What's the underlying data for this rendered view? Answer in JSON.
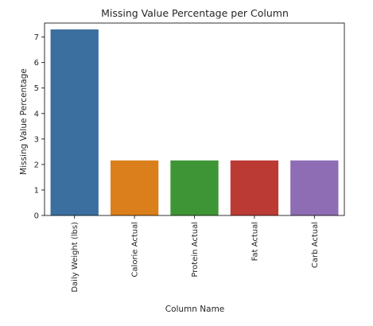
{
  "chart_data": {
    "type": "bar",
    "title": "Missing Value Percentage per Column",
    "xlabel": "Column Name",
    "ylabel": "Missing Value Percentage",
    "categories": [
      "Daily Weight (lbs)",
      "Calorie Actual",
      "Protein Actual",
      "Fat Actual",
      "Carb Actual"
    ],
    "values": [
      7.3,
      2.16,
      2.16,
      2.16,
      2.16
    ],
    "colors": [
      "#3a6fa0",
      "#da7f1b",
      "#3e9535",
      "#bc3a34",
      "#8e6db5"
    ],
    "ylim": [
      0,
      7.55
    ],
    "yticks": [
      0,
      1,
      2,
      3,
      4,
      5,
      6,
      7
    ],
    "grid": false,
    "legend": "none"
  }
}
